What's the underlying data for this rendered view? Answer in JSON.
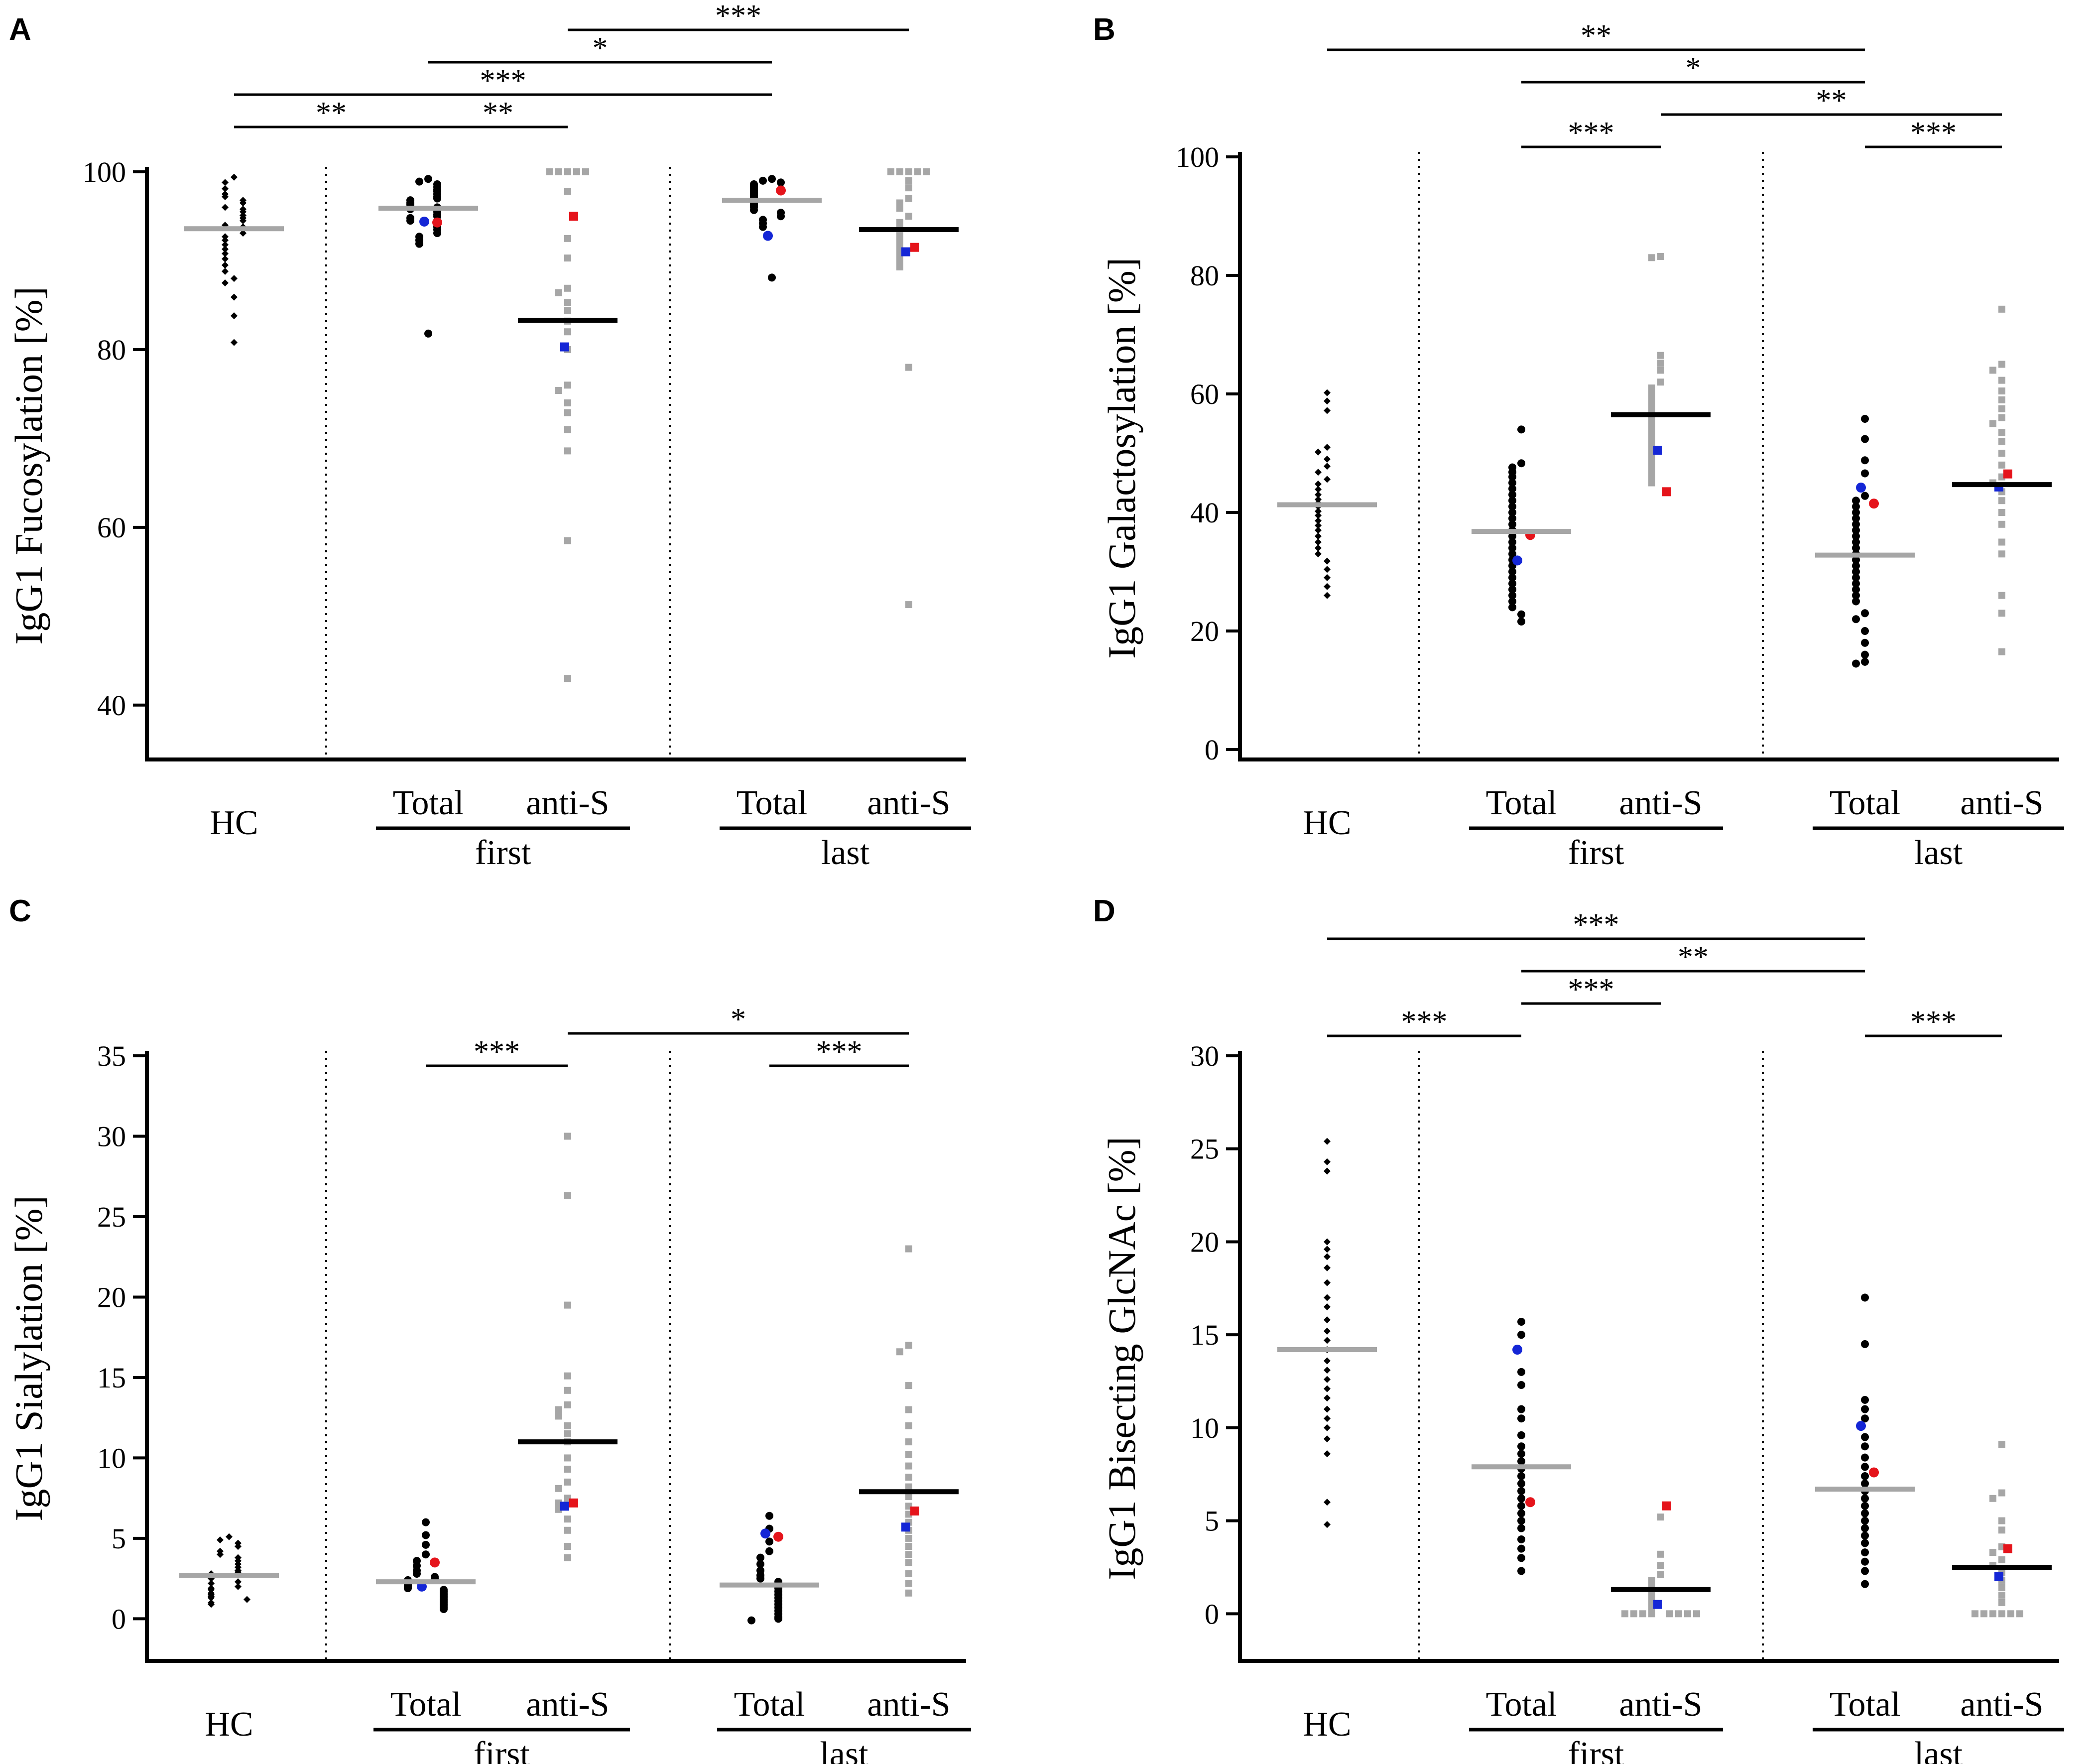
{
  "colors": {
    "axis": "#000000",
    "black_points": "#000000",
    "grey_points": "#a6a6a6",
    "median_grey": "#a6a6a6",
    "median_black": "#000000",
    "highlight_red": "#e5141b",
    "highlight_blue": "#1426d6",
    "divider": "#000000"
  },
  "chart_data": [
    {
      "panel": "A",
      "type": "scatter",
      "ylabel": "IgG1 Fucosylation [%]",
      "ylim": [
        35,
        100
      ],
      "yticks": [
        40,
        60,
        80,
        100
      ],
      "group_labels": {
        "hc": "HC",
        "first": "first",
        "last": "last"
      },
      "columns": [
        {
          "label": "HC",
          "marker": "diamond",
          "color": "black",
          "median": 93.6,
          "median_color": "grey",
          "values": [
            99.4,
            98.8,
            98.1,
            97.5,
            97.2,
            96.8,
            96.5,
            96.0,
            95.8,
            95.5,
            95.1,
            94.8,
            94.5,
            94.0,
            93.8,
            93.5,
            93.1,
            92.7,
            92.3,
            91.8,
            91.3,
            90.8,
            90.2,
            89.5,
            88.8,
            88.0,
            87.5,
            85.9,
            83.8,
            80.8
          ]
        },
        {
          "label": "Total",
          "marker": "circle",
          "color": "black",
          "median": 95.9,
          "median_color": "grey",
          "values": [
            99.2,
            98.9,
            98.6,
            98.3,
            98.0,
            97.8,
            97.5,
            97.2,
            97.0,
            96.8,
            96.5,
            96.3,
            96.0,
            95.8,
            95.5,
            95.2,
            95.0,
            94.8,
            94.5,
            94.2,
            93.8,
            93.5,
            93.1,
            92.7,
            92.3,
            91.9,
            81.8
          ],
          "red": 94.3,
          "blue": 94.4
        },
        {
          "label": "anti-S",
          "marker": "square",
          "color": "grey",
          "median": 83.3,
          "median_color": "black",
          "values": [
            100,
            100,
            100,
            100,
            100,
            97.8,
            92.5,
            90.3,
            86.9,
            86.4,
            85.3,
            84.4,
            83.2,
            82.0,
            80.0,
            76.0,
            75.4,
            74.0,
            72.9,
            71.0,
            68.6,
            58.5,
            43.0
          ],
          "red": 95.0,
          "blue": 80.3
        },
        {
          "label": "Total",
          "marker": "circle",
          "color": "black",
          "median": 96.8,
          "median_color": "grey",
          "values": [
            99.2,
            99.0,
            98.8,
            98.6,
            98.4,
            98.2,
            98.0,
            97.8,
            97.6,
            97.4,
            97.2,
            97.0,
            96.8,
            96.6,
            96.4,
            96.2,
            96.0,
            95.7,
            95.4,
            95.0,
            94.6,
            94.2,
            93.8,
            88.1
          ],
          "red": 97.9,
          "blue": 92.8
        },
        {
          "label": "anti-S",
          "marker": "square",
          "color": "grey",
          "median": 93.5,
          "median_color": "black",
          "values": [
            100,
            100,
            100,
            100,
            100,
            99.0,
            98.2,
            97.0,
            96.5,
            95.9,
            95.0,
            94.3,
            93.6,
            93.0,
            92.4,
            91.8,
            91.2,
            90.6,
            90.0,
            89.3,
            78.0,
            51.3
          ],
          "red": 91.5,
          "blue": 91.0
        }
      ],
      "significance": [
        {
          "from": 0,
          "to": 1,
          "label": "**",
          "level": 0
        },
        {
          "from": 1,
          "to": 2,
          "label": "**",
          "level": 0
        },
        {
          "from": 0,
          "to": 3,
          "label": "***",
          "level": 1
        },
        {
          "from": 1,
          "to": 3,
          "label": "*",
          "level": 2
        },
        {
          "from": 2,
          "to": 4,
          "label": "***",
          "level": 3
        }
      ]
    },
    {
      "panel": "B",
      "type": "scatter",
      "ylabel": "IgG1 Galactosylation [%]",
      "ylim": [
        0,
        100
      ],
      "yticks": [
        0,
        20,
        40,
        60,
        80,
        100
      ],
      "group_labels": {
        "hc": "HC",
        "first": "first",
        "last": "last"
      },
      "columns": [
        {
          "label": "HC",
          "marker": "diamond",
          "color": "black",
          "median": 41.3,
          "median_color": "grey",
          "values": [
            60.2,
            58.8,
            57.2,
            51.0,
            50.2,
            49.0,
            47.8,
            46.8,
            45.6,
            44.8,
            43.9,
            43.0,
            42.2,
            41.6,
            41.0,
            40.2,
            39.5,
            38.6,
            37.8,
            37.0,
            36.0,
            35.0,
            34.0,
            33.0,
            31.8,
            30.4,
            29.0,
            27.5,
            26.0
          ]
        },
        {
          "label": "Total",
          "marker": "circle",
          "color": "black",
          "median": 36.8,
          "median_color": "grey",
          "values": [
            54.0,
            48.3,
            47.6,
            46.8,
            46.0,
            45.0,
            44.0,
            43.0,
            42.0,
            41.0,
            40.0,
            39.0,
            38.0,
            37.0,
            36.0,
            35.0,
            34.0,
            33.0,
            32.0,
            31.0,
            30.0,
            29.0,
            28.0,
            27.0,
            26.0,
            25.0,
            24.0,
            22.8,
            21.6
          ],
          "red": 36.2,
          "blue": 31.9
        },
        {
          "label": "anti-S",
          "marker": "square",
          "color": "grey",
          "median": 56.5,
          "median_color": "black",
          "values": [
            83.2,
            83.0,
            66.5,
            65.2,
            64.0,
            62.0,
            61.0,
            60.0,
            59.0,
            58.0,
            57.0,
            56.0,
            55.0,
            54.0,
            53.0,
            52.0,
            51.0,
            50.0,
            49.0,
            48.0,
            47.0,
            46.0,
            45.0
          ],
          "red": 43.5,
          "blue": 50.5
        },
        {
          "label": "Total",
          "marker": "circle",
          "color": "black",
          "median": 32.8,
          "median_color": "grey",
          "values": [
            55.8,
            52.4,
            48.8,
            46.6,
            42.8,
            42.0,
            41.0,
            40.0,
            39.0,
            38.0,
            37.0,
            36.0,
            35.0,
            34.0,
            33.0,
            32.0,
            31.0,
            30.0,
            29.0,
            28.0,
            27.0,
            26.0,
            25.0,
            23.0,
            22.0,
            20.0,
            18.0,
            16.0,
            14.8,
            14.5
          ],
          "red": 41.5,
          "blue": 44.2
        },
        {
          "label": "anti-S",
          "marker": "square",
          "color": "grey",
          "median": 44.7,
          "median_color": "black",
          "values": [
            74.3,
            65.0,
            64.0,
            62.3,
            60.5,
            59.0,
            57.5,
            56.0,
            55.0,
            53.5,
            52.0,
            50.0,
            48.0,
            46.0,
            45.0,
            43.5,
            42.0,
            40.0,
            38.0,
            35.0,
            33.0,
            26.0,
            23.0,
            16.5
          ],
          "red": 46.5,
          "blue": 44.3
        }
      ],
      "significance": [
        {
          "from": 1,
          "to": 2,
          "label": "***",
          "level": 0
        },
        {
          "from": 3,
          "to": 4,
          "label": "***",
          "level": 0
        },
        {
          "from": 2,
          "to": 4,
          "label": "**",
          "level": 1
        },
        {
          "from": 1,
          "to": 3,
          "label": "*",
          "level": 2
        },
        {
          "from": 0,
          "to": 3,
          "label": "**",
          "level": 3
        }
      ]
    },
    {
      "panel": "C",
      "type": "scatter",
      "ylabel": "IgG1 Sialylation [%]",
      "ylim": [
        -2,
        35
      ],
      "yticks": [
        0,
        5,
        10,
        15,
        20,
        25,
        30,
        35
      ],
      "group_labels": {
        "hc": "HC",
        "first": "first",
        "last": "last"
      },
      "columns": [
        {
          "label": "HC",
          "marker": "diamond",
          "color": "black",
          "median": 2.7,
          "median_color": "grey",
          "values": [
            5.1,
            4.9,
            4.7,
            4.5,
            4.2,
            4.0,
            3.8,
            3.6,
            3.4,
            3.2,
            3.0,
            2.9,
            2.8,
            2.6,
            2.5,
            2.3,
            2.2,
            2.0,
            1.9,
            1.8,
            1.6,
            1.5,
            1.4,
            1.3,
            1.2,
            1.0,
            0.9
          ]
        },
        {
          "label": "Total",
          "marker": "circle",
          "color": "black",
          "median": 2.3,
          "median_color": "grey",
          "values": [
            6.0,
            5.2,
            4.6,
            4.0,
            3.6,
            3.3,
            3.0,
            2.8,
            2.6,
            2.5,
            2.4,
            2.2,
            2.1,
            2.0,
            1.9,
            1.8,
            1.7,
            1.6,
            1.5,
            1.4,
            1.3,
            1.2,
            1.1,
            1.0,
            0.9,
            0.8,
            0.7,
            0.6
          ],
          "red": 3.5,
          "blue": 2.0
        },
        {
          "label": "anti-S",
          "marker": "square",
          "color": "grey",
          "median": 11.0,
          "median_color": "black",
          "values": [
            30.0,
            26.3,
            19.5,
            15.1,
            14.2,
            13.3,
            13.0,
            12.6,
            12.0,
            11.5,
            11.0,
            10.0,
            9.3,
            8.5,
            8.1,
            7.5,
            7.2,
            6.8,
            6.2,
            5.5,
            4.5,
            3.8
          ],
          "red": 7.2,
          "blue": 7.0
        },
        {
          "label": "Total",
          "marker": "circle",
          "color": "black",
          "median": 2.1,
          "median_color": "grey",
          "values": [
            6.4,
            5.6,
            4.8,
            4.2,
            3.8,
            3.4,
            3.0,
            2.7,
            2.5,
            2.3,
            2.1,
            1.9,
            1.7,
            1.5,
            1.3,
            1.1,
            0.9,
            0.7,
            0.5,
            0.3,
            0.1,
            0.0,
            -0.1
          ],
          "red": 5.1,
          "blue": 5.3
        },
        {
          "label": "anti-S",
          "marker": "square",
          "color": "grey",
          "median": 7.9,
          "median_color": "black",
          "values": [
            23.0,
            17.0,
            16.6,
            14.5,
            13.0,
            12.0,
            11.0,
            10.2,
            9.5,
            8.8,
            8.2,
            7.6,
            7.0,
            6.5,
            6.0,
            5.5,
            5.0,
            4.5,
            4.0,
            3.5,
            2.8,
            2.2,
            1.6
          ],
          "red": 6.7,
          "blue": 5.7
        }
      ],
      "significance": [
        {
          "from": 1,
          "to": 2,
          "label": "***",
          "level": 0
        },
        {
          "from": 3,
          "to": 4,
          "label": "***",
          "level": 0
        },
        {
          "from": 2,
          "to": 4,
          "label": "*",
          "level": 1
        }
      ]
    },
    {
      "panel": "D",
      "type": "scatter",
      "ylabel": "IgG1 Bisecting GlcNAc [%]",
      "ylim": [
        -2,
        30
      ],
      "yticks": [
        0,
        5,
        10,
        15,
        20,
        25,
        30
      ],
      "group_labels": {
        "hc": "HC",
        "first": "first",
        "last": "last"
      },
      "columns": [
        {
          "label": "HC",
          "marker": "diamond",
          "color": "black",
          "median": 14.2,
          "median_color": "grey",
          "values": [
            25.4,
            24.3,
            23.8,
            20.0,
            19.6,
            19.2,
            18.6,
            17.8,
            17.0,
            16.5,
            15.8,
            15.2,
            14.7,
            14.2,
            13.6,
            13.1,
            12.6,
            12.1,
            11.6,
            11.0,
            10.5,
            10.0,
            9.4,
            8.6,
            6.0,
            4.8
          ]
        },
        {
          "label": "Total",
          "marker": "circle",
          "color": "black",
          "median": 7.9,
          "median_color": "grey",
          "values": [
            15.7,
            15.0,
            13.0,
            12.3,
            11.0,
            10.5,
            9.6,
            9.0,
            8.6,
            8.2,
            7.8,
            7.4,
            7.0,
            6.6,
            6.2,
            5.8,
            5.4,
            5.0,
            4.6,
            4.0,
            3.5,
            3.0,
            2.3
          ],
          "red": 6.0,
          "blue": 14.2
        },
        {
          "label": "anti-S",
          "marker": "square",
          "color": "grey",
          "median": 1.3,
          "median_color": "black",
          "values": [
            5.2,
            3.2,
            2.6,
            2.1,
            1.8,
            1.5,
            1.2,
            1.0,
            0.8,
            0.6,
            0.4,
            0.2,
            0.0,
            0.0,
            0.0,
            0.0,
            0.0,
            0.0,
            0.0,
            0.0
          ],
          "red": 5.8,
          "blue": 0.5
        },
        {
          "label": "Total",
          "marker": "circle",
          "color": "black",
          "median": 6.7,
          "median_color": "grey",
          "values": [
            17.0,
            14.5,
            11.5,
            11.0,
            10.5,
            9.5,
            9.0,
            8.4,
            7.9,
            7.4,
            7.0,
            6.6,
            6.2,
            5.8,
            5.4,
            5.0,
            4.6,
            4.2,
            3.8,
            3.3,
            2.8,
            2.3,
            1.6
          ],
          "red": 7.6,
          "blue": 10.1
        },
        {
          "label": "anti-S",
          "marker": "square",
          "color": "grey",
          "median": 2.5,
          "median_color": "black",
          "values": [
            9.1,
            6.5,
            6.2,
            5.0,
            4.5,
            3.6,
            3.3,
            2.9,
            2.6,
            2.2,
            1.8,
            1.4,
            1.0,
            0.6,
            0.0,
            0.0,
            0.0,
            0.0,
            0.0,
            0.0
          ],
          "red": 3.5,
          "blue": 2.0
        }
      ],
      "significance": [
        {
          "from": 0,
          "to": 1,
          "label": "***",
          "level": 0
        },
        {
          "from": 1,
          "to": 2,
          "label": "***",
          "level": 1
        },
        {
          "from": 3,
          "to": 4,
          "label": "***",
          "level": 0
        },
        {
          "from": 1,
          "to": 3,
          "label": "**",
          "level": 2
        },
        {
          "from": 0,
          "to": 3,
          "label": "***",
          "level": 3
        }
      ]
    }
  ]
}
